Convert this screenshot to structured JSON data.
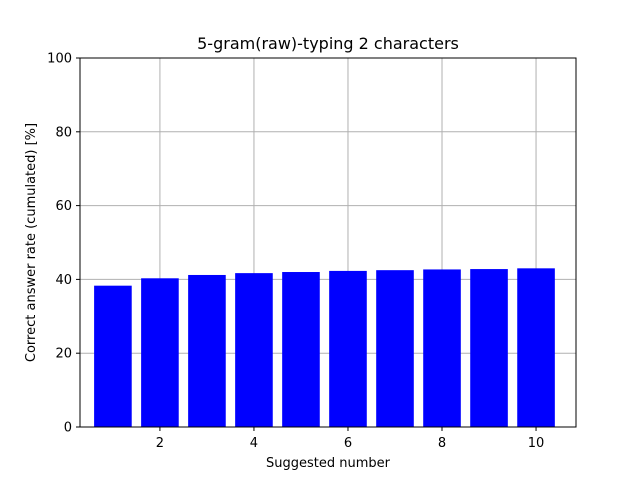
{
  "chart_data": {
    "type": "bar",
    "title": "5-gram(raw)-typing 2 characters",
    "xlabel": "Suggested number",
    "ylabel": "Correct answer rate (cumulated) [%]",
    "x": [
      1,
      2,
      3,
      4,
      5,
      6,
      7,
      8,
      9,
      10
    ],
    "values": [
      38.3,
      40.3,
      41.2,
      41.7,
      42.0,
      42.3,
      42.5,
      42.7,
      42.8,
      43.0
    ],
    "xlim": [
      0.3,
      10.85
    ],
    "ylim": [
      0,
      100
    ],
    "xticks": [
      2,
      4,
      6,
      8,
      10
    ],
    "yticks": [
      0,
      20,
      40,
      60,
      80,
      100
    ],
    "grid": true,
    "bar_color": "#0000ff",
    "grid_color": "#b0b0b0"
  }
}
